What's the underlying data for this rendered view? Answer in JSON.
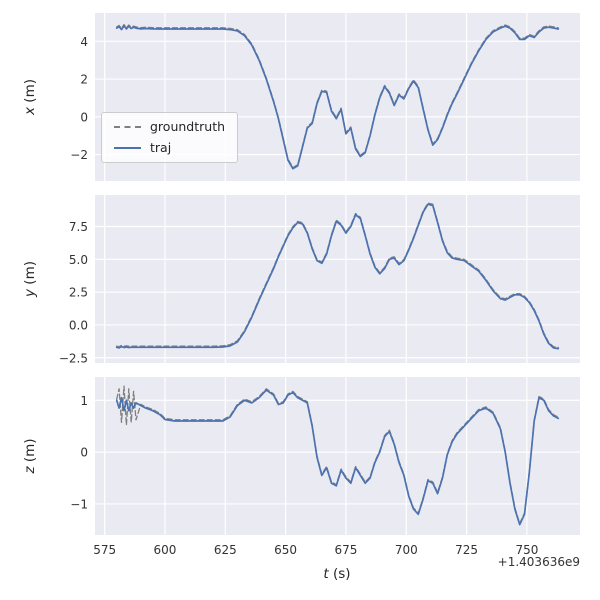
{
  "chart_data": {
    "type": "line",
    "xlabel_var": "t",
    "xlabel_unit": "(s)",
    "x_axis_offset": "+1.403636e9",
    "xlim": [
      571,
      772
    ],
    "xticks": [
      575,
      600,
      625,
      650,
      675,
      700,
      725,
      750
    ],
    "xtick_labels": [
      "575",
      "600",
      "625",
      "650",
      "675",
      "700",
      "725",
      "750"
    ],
    "grid": true,
    "legend_position": "lower left of first subplot",
    "colors": {
      "figure_bg": "#ffffff",
      "axes_bg": "#eaeaf2",
      "grid": "#ffffff",
      "traj": "#4c72b0",
      "groundtruth": "#7f7f7f"
    },
    "t": [
      580,
      581,
      582,
      583,
      584,
      585,
      586,
      587,
      588,
      590,
      592,
      595,
      598,
      600,
      604,
      608,
      612,
      616,
      620,
      624,
      627,
      630,
      633,
      636,
      639,
      642,
      645,
      647,
      649,
      651,
      653,
      655,
      657,
      659,
      661,
      663,
      665,
      667,
      669,
      671,
      673,
      675,
      677,
      679,
      681,
      683,
      685,
      687,
      689,
      691,
      693,
      695,
      697,
      699,
      701,
      703,
      705,
      707,
      709,
      711,
      713,
      715,
      717,
      719,
      721,
      724,
      727,
      730,
      733,
      736,
      739,
      741,
      743,
      745,
      747,
      749,
      751,
      753,
      755,
      757,
      759,
      761,
      763
    ],
    "subplots": [
      {
        "ylabel_var": "x",
        "ylabel_unit": "(m)",
        "ylim": [
          -3.4,
          5.5
        ],
        "yticks": [
          -2,
          0,
          2,
          4
        ],
        "ytick_labels": [
          "−2",
          "0",
          "2",
          "4"
        ],
        "series": [
          {
            "name": "groundtruth",
            "color": "#7f7f7f",
            "dash": true,
            "y": [
              4.7,
              4.78,
              4.62,
              4.82,
              4.65,
              4.8,
              4.68,
              4.74,
              4.7,
              4.66,
              4.68,
              4.66,
              4.65,
              4.65,
              4.65,
              4.65,
              4.65,
              4.65,
              4.65,
              4.65,
              4.62,
              4.55,
              4.3,
              3.8,
              3.0,
              2.0,
              0.8,
              -0.1,
              -1.2,
              -2.3,
              -2.75,
              -2.6,
              -1.6,
              -0.6,
              -0.35,
              0.7,
              1.35,
              1.3,
              0.3,
              -0.1,
              0.4,
              -0.9,
              -0.6,
              -1.7,
              -2.1,
              -1.9,
              -1.0,
              0.1,
              1.0,
              1.6,
              1.25,
              0.6,
              1.15,
              0.95,
              1.5,
              1.9,
              1.55,
              0.4,
              -0.7,
              -1.5,
              -1.2,
              -0.6,
              0.1,
              0.7,
              1.2,
              2.0,
              2.8,
              3.5,
              4.1,
              4.5,
              4.7,
              4.8,
              4.7,
              4.45,
              4.1,
              4.1,
              4.3,
              4.2,
              4.5,
              4.7,
              4.75,
              4.7,
              4.65
            ]
          },
          {
            "name": "traj",
            "color": "#4c72b0",
            "dash": false,
            "y": [
              4.7,
              4.78,
              4.62,
              4.82,
              4.65,
              4.8,
              4.68,
              4.74,
              4.7,
              4.66,
              4.68,
              4.66,
              4.65,
              4.65,
              4.65,
              4.65,
              4.65,
              4.65,
              4.65,
              4.65,
              4.62,
              4.55,
              4.3,
              3.8,
              3.0,
              2.0,
              0.8,
              -0.1,
              -1.2,
              -2.3,
              -2.75,
              -2.6,
              -1.6,
              -0.6,
              -0.35,
              0.7,
              1.35,
              1.3,
              0.3,
              -0.1,
              0.4,
              -0.9,
              -0.6,
              -1.7,
              -2.1,
              -1.9,
              -1.0,
              0.1,
              1.0,
              1.6,
              1.25,
              0.6,
              1.15,
              0.95,
              1.5,
              1.9,
              1.55,
              0.4,
              -0.7,
              -1.5,
              -1.2,
              -0.6,
              0.1,
              0.7,
              1.2,
              2.0,
              2.8,
              3.5,
              4.1,
              4.5,
              4.7,
              4.8,
              4.7,
              4.45,
              4.1,
              4.1,
              4.3,
              4.2,
              4.5,
              4.7,
              4.75,
              4.7,
              4.65
            ]
          }
        ]
      },
      {
        "ylabel_var": "y",
        "ylabel_unit": "(m)",
        "ylim": [
          -2.9,
          9.9
        ],
        "yticks": [
          -2.5,
          0.0,
          2.5,
          5.0,
          7.5
        ],
        "ytick_labels": [
          "−2.5",
          "0.0",
          "2.5",
          "5.0",
          "7.5"
        ],
        "series": [
          {
            "name": "groundtruth",
            "color": "#7f7f7f",
            "dash": true,
            "y": [
              -1.7,
              -1.75,
              -1.65,
              -1.72,
              -1.68,
              -1.72,
              -1.7,
              -1.7,
              -1.7,
              -1.7,
              -1.7,
              -1.7,
              -1.7,
              -1.7,
              -1.7,
              -1.7,
              -1.7,
              -1.7,
              -1.7,
              -1.68,
              -1.6,
              -1.3,
              -0.5,
              0.6,
              1.9,
              3.1,
              4.3,
              5.2,
              6.0,
              6.8,
              7.4,
              7.8,
              7.7,
              7.0,
              5.8,
              4.9,
              4.7,
              5.4,
              6.8,
              7.9,
              7.6,
              7.0,
              7.5,
              8.4,
              8.1,
              6.8,
              5.4,
              4.4,
              3.9,
              4.3,
              5.0,
              5.1,
              4.6,
              4.9,
              5.7,
              6.6,
              7.6,
              8.6,
              9.2,
              9.1,
              7.8,
              6.4,
              5.5,
              5.1,
              5.0,
              4.9,
              4.5,
              4.1,
              3.4,
              2.6,
              2.0,
              1.9,
              2.1,
              2.3,
              2.3,
              2.1,
              1.7,
              1.1,
              0.3,
              -0.7,
              -1.4,
              -1.75,
              -1.8
            ]
          },
          {
            "name": "traj",
            "color": "#4c72b0",
            "dash": false,
            "y": [
              -1.7,
              -1.75,
              -1.65,
              -1.72,
              -1.68,
              -1.72,
              -1.7,
              -1.7,
              -1.7,
              -1.7,
              -1.7,
              -1.7,
              -1.7,
              -1.7,
              -1.7,
              -1.7,
              -1.7,
              -1.7,
              -1.7,
              -1.68,
              -1.6,
              -1.3,
              -0.5,
              0.6,
              1.9,
              3.1,
              4.3,
              5.2,
              6.0,
              6.8,
              7.4,
              7.8,
              7.7,
              7.0,
              5.8,
              4.9,
              4.7,
              5.4,
              6.8,
              7.9,
              7.6,
              7.0,
              7.5,
              8.4,
              8.1,
              6.8,
              5.4,
              4.4,
              3.9,
              4.3,
              5.0,
              5.1,
              4.6,
              4.9,
              5.7,
              6.6,
              7.6,
              8.6,
              9.2,
              9.1,
              7.8,
              6.4,
              5.5,
              5.1,
              5.0,
              4.9,
              4.5,
              4.1,
              3.4,
              2.6,
              2.0,
              1.9,
              2.1,
              2.3,
              2.3,
              2.1,
              1.7,
              1.1,
              0.3,
              -0.7,
              -1.4,
              -1.75,
              -1.8
            ]
          }
        ]
      },
      {
        "ylabel_var": "z",
        "ylabel_unit": "(m)",
        "ylim": [
          -1.6,
          1.45
        ],
        "yticks": [
          -1,
          0,
          1
        ],
        "ytick_labels": [
          "−1",
          "0",
          "1"
        ],
        "series": [
          {
            "name": "groundtruth",
            "color": "#7f7f7f",
            "dash": true,
            "y": [
              1.0,
              1.2,
              0.55,
              1.25,
              0.5,
              1.2,
              0.55,
              1.15,
              0.6,
              0.9,
              0.85,
              0.8,
              0.72,
              0.63,
              0.6,
              0.6,
              0.6,
              0.6,
              0.6,
              0.6,
              0.68,
              0.9,
              1.0,
              0.95,
              1.05,
              1.2,
              1.1,
              0.92,
              0.95,
              1.1,
              1.15,
              1.05,
              1.0,
              0.95,
              0.5,
              -0.1,
              -0.45,
              -0.3,
              -0.6,
              -0.65,
              -0.35,
              -0.5,
              -0.6,
              -0.3,
              -0.45,
              -0.6,
              -0.5,
              -0.2,
              0.0,
              0.3,
              0.4,
              0.15,
              -0.2,
              -0.45,
              -0.85,
              -1.1,
              -1.2,
              -0.9,
              -0.55,
              -0.6,
              -0.8,
              -0.5,
              -0.05,
              0.2,
              0.35,
              0.5,
              0.65,
              0.8,
              0.85,
              0.75,
              0.45,
              0.0,
              -0.6,
              -1.1,
              -1.4,
              -1.2,
              -0.4,
              0.6,
              1.05,
              1.0,
              0.8,
              0.7,
              0.65
            ]
          },
          {
            "name": "traj",
            "color": "#4c72b0",
            "dash": false,
            "y": [
              1.0,
              0.85,
              1.05,
              0.8,
              1.0,
              0.8,
              0.95,
              0.85,
              0.95,
              0.9,
              0.85,
              0.8,
              0.72,
              0.63,
              0.6,
              0.6,
              0.6,
              0.6,
              0.6,
              0.6,
              0.68,
              0.9,
              1.0,
              0.95,
              1.05,
              1.2,
              1.1,
              0.92,
              0.95,
              1.1,
              1.15,
              1.05,
              1.0,
              0.95,
              0.5,
              -0.1,
              -0.45,
              -0.3,
              -0.6,
              -0.65,
              -0.35,
              -0.5,
              -0.6,
              -0.3,
              -0.45,
              -0.6,
              -0.5,
              -0.2,
              0.0,
              0.3,
              0.4,
              0.15,
              -0.2,
              -0.45,
              -0.85,
              -1.1,
              -1.2,
              -0.9,
              -0.55,
              -0.6,
              -0.8,
              -0.5,
              -0.05,
              0.2,
              0.35,
              0.5,
              0.65,
              0.8,
              0.85,
              0.75,
              0.45,
              0.0,
              -0.6,
              -1.1,
              -1.4,
              -1.2,
              -0.4,
              0.6,
              1.05,
              1.0,
              0.8,
              0.7,
              0.65
            ]
          }
        ]
      }
    ]
  }
}
